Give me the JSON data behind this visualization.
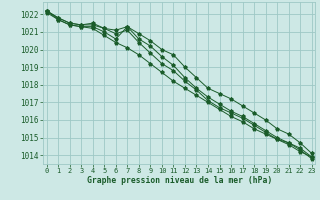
{
  "title": "Graphe pression niveau de la mer (hPa)",
  "background_color": "#cde8e5",
  "grid_color": "#9ec8c5",
  "line_color": "#1a5c2a",
  "ylim": [
    1013.5,
    1022.7
  ],
  "xlim": [
    -0.3,
    23.3
  ],
  "yticks": [
    1014,
    1015,
    1016,
    1017,
    1018,
    1019,
    1020,
    1021,
    1022
  ],
  "xticks": [
    0,
    1,
    2,
    3,
    4,
    5,
    6,
    7,
    8,
    9,
    10,
    11,
    12,
    13,
    14,
    15,
    16,
    17,
    18,
    19,
    20,
    21,
    22,
    23
  ],
  "series": [
    [
      1022.2,
      1021.8,
      1021.5,
      1021.4,
      1021.4,
      1021.2,
      1021.1,
      1021.3,
      1020.9,
      1020.5,
      1020.0,
      1019.7,
      1019.0,
      1018.4,
      1017.8,
      1017.5,
      1017.2,
      1016.8,
      1016.4,
      1016.0,
      1015.5,
      1015.2,
      1014.7,
      1014.1
    ],
    [
      1022.2,
      1021.7,
      1021.4,
      1021.3,
      1021.3,
      1021.0,
      1020.6,
      1021.3,
      1020.6,
      1020.2,
      1019.6,
      1019.1,
      1018.4,
      1017.8,
      1017.3,
      1016.9,
      1016.5,
      1016.2,
      1015.8,
      1015.4,
      1015.0,
      1014.7,
      1014.3,
      1013.8
    ],
    [
      1022.2,
      1021.8,
      1021.5,
      1021.4,
      1021.5,
      1021.2,
      1020.9,
      1021.1,
      1020.4,
      1019.8,
      1019.2,
      1018.8,
      1018.2,
      1017.7,
      1017.1,
      1016.7,
      1016.4,
      1016.1,
      1015.7,
      1015.3,
      1014.9,
      1014.6,
      1014.2,
      1013.9
    ],
    [
      1022.1,
      1021.7,
      1021.4,
      1021.3,
      1021.2,
      1020.8,
      1020.4,
      1020.1,
      1019.7,
      1019.2,
      1018.7,
      1018.2,
      1017.8,
      1017.4,
      1017.0,
      1016.6,
      1016.2,
      1015.9,
      1015.5,
      1015.2,
      1014.9,
      1014.7,
      1014.4,
      1013.9
    ]
  ]
}
